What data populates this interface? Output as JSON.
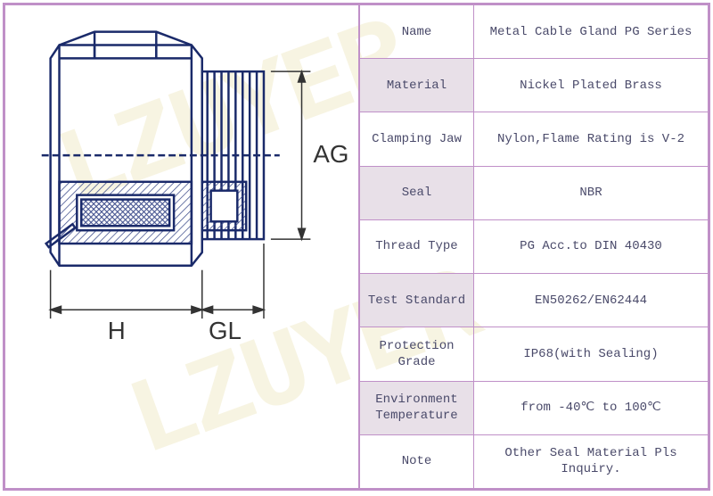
{
  "watermark_text": "LZUYER",
  "table": {
    "rows": [
      {
        "label": "Name",
        "value": "Metal Cable Gland PG Series",
        "alt": false
      },
      {
        "label": "Material",
        "value": "Nickel Plated Brass",
        "alt": true
      },
      {
        "label": "Clamping Jaw",
        "value": "Nylon,Flame Rating is V-2",
        "alt": false
      },
      {
        "label": "Seal",
        "value": "NBR",
        "alt": true
      },
      {
        "label": "Thread Type",
        "value": "PG Acc.to DIN 40430",
        "alt": false
      },
      {
        "label": "Test Standard",
        "value": "EN50262/EN62444",
        "alt": true
      },
      {
        "label": "Protection Grade",
        "value": "IP68(with Sealing)",
        "alt": false
      },
      {
        "label": "Environment Temperature",
        "value": "from -40℃ to 100℃",
        "alt": true
      },
      {
        "label": "Note",
        "value": "Other Seal Material Pls Inquiry.",
        "alt": false
      }
    ],
    "label_bg_alt": "#e8e0e8",
    "border_color": "#c090c8",
    "text_color": "#4a4a6a",
    "font_size": 14
  },
  "diagram": {
    "dimensions": {
      "H": "H",
      "GL": "GL",
      "AG": "AG"
    },
    "stroke_color": "#1a2a6a",
    "stroke_width": 2,
    "hatch_color": "#3a4a8a"
  }
}
